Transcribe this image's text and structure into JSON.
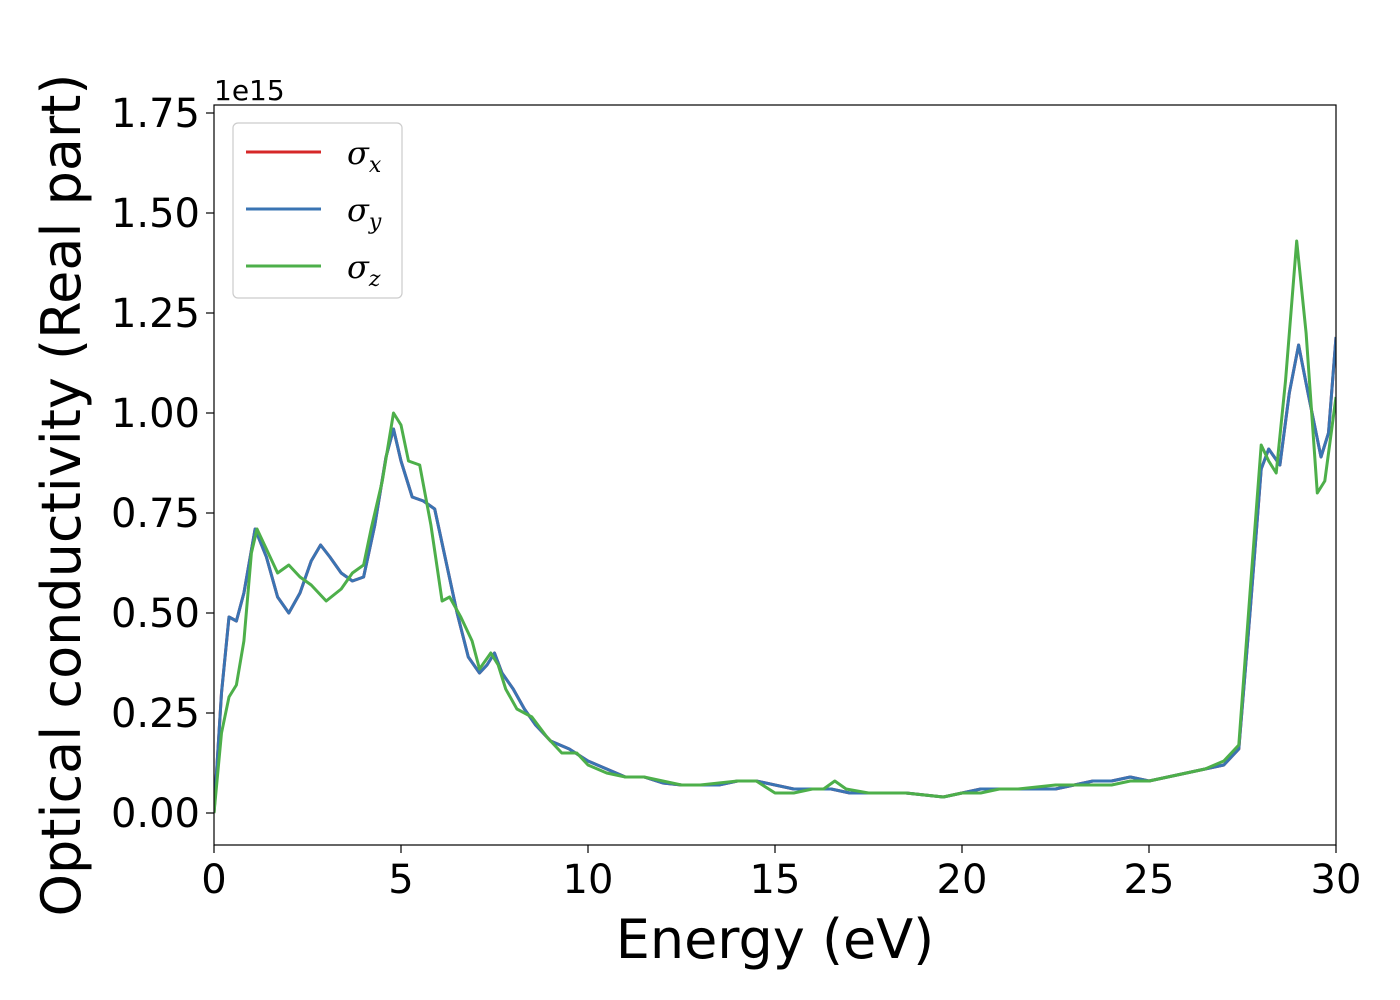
{
  "chart_data": {
    "type": "line",
    "title": "",
    "xlabel": "Energy (eV)",
    "ylabel": "Optical conductivity (Real part)",
    "y_offset_label": "1e15",
    "xlim": [
      0,
      30
    ],
    "ylim": [
      -0.08,
      1.77
    ],
    "x_ticks": [
      0,
      5,
      10,
      15,
      20,
      25,
      30
    ],
    "x_tick_labels": [
      "0",
      "5",
      "10",
      "15",
      "20",
      "25",
      "30"
    ],
    "y_ticks": [
      0.0,
      0.25,
      0.5,
      0.75,
      1.0,
      1.25,
      1.5,
      1.75
    ],
    "y_tick_labels": [
      "0.00",
      "0.25",
      "0.50",
      "0.75",
      "1.00",
      "1.25",
      "1.50",
      "1.75"
    ],
    "grid": false,
    "legend_position": "top-left",
    "series": [
      {
        "name": "σx",
        "symbol": "σ",
        "sub": "x",
        "color": "#d62728",
        "points": [
          [
            0,
            0
          ],
          [
            0.2,
            0.3
          ],
          [
            0.4,
            0.49
          ],
          [
            0.6,
            0.48
          ],
          [
            0.8,
            0.55
          ],
          [
            1.1,
            0.71
          ],
          [
            1.4,
            0.64
          ],
          [
            1.7,
            0.54
          ],
          [
            2.0,
            0.5
          ],
          [
            2.3,
            0.55
          ],
          [
            2.6,
            0.63
          ],
          [
            2.85,
            0.67
          ],
          [
            3.1,
            0.64
          ],
          [
            3.4,
            0.6
          ],
          [
            3.7,
            0.58
          ],
          [
            4.0,
            0.59
          ],
          [
            4.3,
            0.72
          ],
          [
            4.6,
            0.89
          ],
          [
            4.8,
            0.96
          ],
          [
            5.0,
            0.88
          ],
          [
            5.3,
            0.79
          ],
          [
            5.6,
            0.78
          ],
          [
            5.9,
            0.76
          ],
          [
            6.2,
            0.63
          ],
          [
            6.5,
            0.5
          ],
          [
            6.8,
            0.39
          ],
          [
            7.1,
            0.35
          ],
          [
            7.3,
            0.37
          ],
          [
            7.5,
            0.4
          ],
          [
            7.7,
            0.35
          ],
          [
            8.0,
            0.31
          ],
          [
            8.3,
            0.26
          ],
          [
            8.6,
            0.22
          ],
          [
            9.0,
            0.18
          ],
          [
            9.5,
            0.16
          ],
          [
            10.0,
            0.13
          ],
          [
            10.5,
            0.11
          ],
          [
            11.0,
            0.09
          ],
          [
            11.5,
            0.09
          ],
          [
            12.0,
            0.075
          ],
          [
            12.5,
            0.07
          ],
          [
            13.0,
            0.07
          ],
          [
            13.5,
            0.07
          ],
          [
            14.0,
            0.08
          ],
          [
            14.5,
            0.08
          ],
          [
            15.0,
            0.07
          ],
          [
            15.5,
            0.06
          ],
          [
            16.0,
            0.06
          ],
          [
            16.5,
            0.06
          ],
          [
            17.0,
            0.05
          ],
          [
            17.5,
            0.05
          ],
          [
            18.0,
            0.05
          ],
          [
            18.5,
            0.05
          ],
          [
            19.0,
            0.045
          ],
          [
            19.5,
            0.04
          ],
          [
            20.0,
            0.05
          ],
          [
            20.5,
            0.06
          ],
          [
            21.0,
            0.06
          ],
          [
            21.5,
            0.06
          ],
          [
            22.0,
            0.06
          ],
          [
            22.5,
            0.06
          ],
          [
            23.0,
            0.07
          ],
          [
            23.5,
            0.08
          ],
          [
            24.0,
            0.08
          ],
          [
            24.5,
            0.09
          ],
          [
            25.0,
            0.08
          ],
          [
            25.5,
            0.09
          ],
          [
            26.0,
            0.1
          ],
          [
            26.5,
            0.11
          ],
          [
            27.0,
            0.12
          ],
          [
            27.4,
            0.16
          ],
          [
            27.7,
            0.5
          ],
          [
            28.0,
            0.86
          ],
          [
            28.2,
            0.91
          ],
          [
            28.5,
            0.87
          ],
          [
            28.75,
            1.05
          ],
          [
            29.0,
            1.17
          ],
          [
            29.25,
            1.05
          ],
          [
            29.6,
            0.89
          ],
          [
            29.8,
            0.95
          ],
          [
            30.0,
            1.19
          ]
        ]
      },
      {
        "name": "σy",
        "symbol": "σ",
        "sub": "y",
        "color": "#3a74b3",
        "points": [
          [
            0,
            0
          ],
          [
            0.2,
            0.3
          ],
          [
            0.4,
            0.49
          ],
          [
            0.6,
            0.48
          ],
          [
            0.8,
            0.55
          ],
          [
            1.1,
            0.71
          ],
          [
            1.4,
            0.64
          ],
          [
            1.7,
            0.54
          ],
          [
            2.0,
            0.5
          ],
          [
            2.3,
            0.55
          ],
          [
            2.6,
            0.63
          ],
          [
            2.85,
            0.67
          ],
          [
            3.1,
            0.64
          ],
          [
            3.4,
            0.6
          ],
          [
            3.7,
            0.58
          ],
          [
            4.0,
            0.59
          ],
          [
            4.3,
            0.72
          ],
          [
            4.6,
            0.89
          ],
          [
            4.8,
            0.96
          ],
          [
            5.0,
            0.88
          ],
          [
            5.3,
            0.79
          ],
          [
            5.6,
            0.78
          ],
          [
            5.9,
            0.76
          ],
          [
            6.2,
            0.63
          ],
          [
            6.5,
            0.5
          ],
          [
            6.8,
            0.39
          ],
          [
            7.1,
            0.35
          ],
          [
            7.3,
            0.37
          ],
          [
            7.5,
            0.4
          ],
          [
            7.7,
            0.35
          ],
          [
            8.0,
            0.31
          ],
          [
            8.3,
            0.26
          ],
          [
            8.6,
            0.22
          ],
          [
            9.0,
            0.18
          ],
          [
            9.5,
            0.16
          ],
          [
            10.0,
            0.13
          ],
          [
            10.5,
            0.11
          ],
          [
            11.0,
            0.09
          ],
          [
            11.5,
            0.09
          ],
          [
            12.0,
            0.075
          ],
          [
            12.5,
            0.07
          ],
          [
            13.0,
            0.07
          ],
          [
            13.5,
            0.07
          ],
          [
            14.0,
            0.08
          ],
          [
            14.5,
            0.08
          ],
          [
            15.0,
            0.07
          ],
          [
            15.5,
            0.06
          ],
          [
            16.0,
            0.06
          ],
          [
            16.5,
            0.06
          ],
          [
            17.0,
            0.05
          ],
          [
            17.5,
            0.05
          ],
          [
            18.0,
            0.05
          ],
          [
            18.5,
            0.05
          ],
          [
            19.0,
            0.045
          ],
          [
            19.5,
            0.04
          ],
          [
            20.0,
            0.05
          ],
          [
            20.5,
            0.06
          ],
          [
            21.0,
            0.06
          ],
          [
            21.5,
            0.06
          ],
          [
            22.0,
            0.06
          ],
          [
            22.5,
            0.06
          ],
          [
            23.0,
            0.07
          ],
          [
            23.5,
            0.08
          ],
          [
            24.0,
            0.08
          ],
          [
            24.5,
            0.09
          ],
          [
            25.0,
            0.08
          ],
          [
            25.5,
            0.09
          ],
          [
            26.0,
            0.1
          ],
          [
            26.5,
            0.11
          ],
          [
            27.0,
            0.12
          ],
          [
            27.4,
            0.16
          ],
          [
            27.7,
            0.5
          ],
          [
            28.0,
            0.86
          ],
          [
            28.2,
            0.91
          ],
          [
            28.5,
            0.87
          ],
          [
            28.75,
            1.05
          ],
          [
            29.0,
            1.17
          ],
          [
            29.25,
            1.05
          ],
          [
            29.6,
            0.89
          ],
          [
            29.8,
            0.95
          ],
          [
            30.0,
            1.19
          ]
        ]
      },
      {
        "name": "σz",
        "symbol": "σ",
        "sub": "z",
        "color": "#4daf4a",
        "points": [
          [
            0,
            0
          ],
          [
            0.2,
            0.2
          ],
          [
            0.4,
            0.29
          ],
          [
            0.6,
            0.32
          ],
          [
            0.8,
            0.43
          ],
          [
            1.0,
            0.65
          ],
          [
            1.15,
            0.71
          ],
          [
            1.4,
            0.66
          ],
          [
            1.7,
            0.6
          ],
          [
            2.0,
            0.62
          ],
          [
            2.3,
            0.59
          ],
          [
            2.6,
            0.57
          ],
          [
            3.0,
            0.53
          ],
          [
            3.4,
            0.56
          ],
          [
            3.7,
            0.6
          ],
          [
            4.0,
            0.62
          ],
          [
            4.2,
            0.71
          ],
          [
            4.5,
            0.83
          ],
          [
            4.8,
            1.0
          ],
          [
            5.0,
            0.97
          ],
          [
            5.2,
            0.88
          ],
          [
            5.5,
            0.87
          ],
          [
            5.8,
            0.72
          ],
          [
            6.1,
            0.53
          ],
          [
            6.3,
            0.54
          ],
          [
            6.6,
            0.49
          ],
          [
            6.9,
            0.43
          ],
          [
            7.1,
            0.36
          ],
          [
            7.4,
            0.4
          ],
          [
            7.6,
            0.37
          ],
          [
            7.8,
            0.31
          ],
          [
            8.1,
            0.26
          ],
          [
            8.5,
            0.24
          ],
          [
            8.9,
            0.19
          ],
          [
            9.3,
            0.15
          ],
          [
            9.7,
            0.15
          ],
          [
            10.0,
            0.12
          ],
          [
            10.5,
            0.1
          ],
          [
            11.0,
            0.09
          ],
          [
            11.5,
            0.09
          ],
          [
            12.0,
            0.08
          ],
          [
            12.5,
            0.07
          ],
          [
            13.0,
            0.07
          ],
          [
            13.5,
            0.075
          ],
          [
            14.0,
            0.08
          ],
          [
            14.5,
            0.08
          ],
          [
            15.0,
            0.05
          ],
          [
            15.5,
            0.05
          ],
          [
            16.0,
            0.06
          ],
          [
            16.3,
            0.06
          ],
          [
            16.6,
            0.08
          ],
          [
            16.9,
            0.06
          ],
          [
            17.5,
            0.05
          ],
          [
            18.0,
            0.05
          ],
          [
            18.5,
            0.05
          ],
          [
            19.0,
            0.045
          ],
          [
            19.5,
            0.04
          ],
          [
            20.0,
            0.05
          ],
          [
            20.5,
            0.05
          ],
          [
            21.0,
            0.06
          ],
          [
            21.5,
            0.06
          ],
          [
            22.0,
            0.065
          ],
          [
            22.5,
            0.07
          ],
          [
            23.0,
            0.07
          ],
          [
            23.5,
            0.07
          ],
          [
            24.0,
            0.07
          ],
          [
            24.5,
            0.08
          ],
          [
            25.0,
            0.08
          ],
          [
            25.5,
            0.09
          ],
          [
            26.0,
            0.1
          ],
          [
            26.5,
            0.11
          ],
          [
            27.0,
            0.13
          ],
          [
            27.4,
            0.17
          ],
          [
            27.7,
            0.55
          ],
          [
            28.0,
            0.92
          ],
          [
            28.2,
            0.88
          ],
          [
            28.4,
            0.85
          ],
          [
            28.65,
            1.08
          ],
          [
            28.95,
            1.43
          ],
          [
            29.2,
            1.2
          ],
          [
            29.5,
            0.8
          ],
          [
            29.7,
            0.83
          ],
          [
            30.0,
            1.04
          ]
        ]
      }
    ]
  }
}
